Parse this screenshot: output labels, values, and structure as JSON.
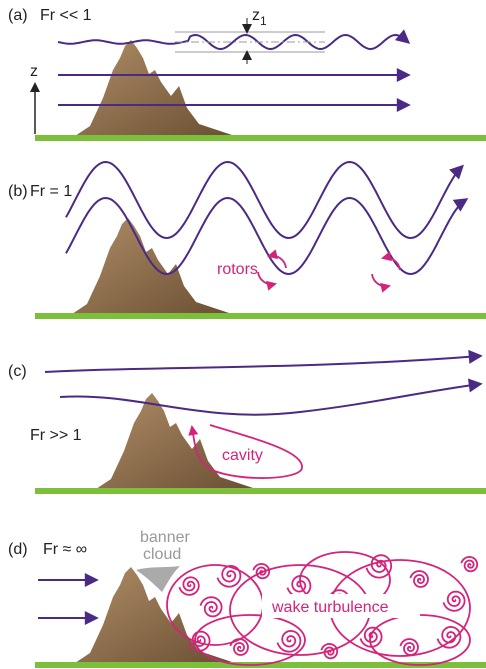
{
  "panels": [
    {
      "label": "(a)",
      "froude": "Fr << 1",
      "axis_label": "z",
      "displacement_label": {
        "symbol": "z",
        "subscript": "1"
      }
    },
    {
      "label": "(b)",
      "froude": "Fr = 1",
      "annotation": "rotors"
    },
    {
      "label": "(c)",
      "froude": "Fr >> 1",
      "annotation": "cavity"
    },
    {
      "label": "(d)",
      "froude": "Fr ≈ ∞",
      "cloud_label": [
        "banner",
        "cloud"
      ],
      "annotation": "wake turbulence"
    }
  ]
}
